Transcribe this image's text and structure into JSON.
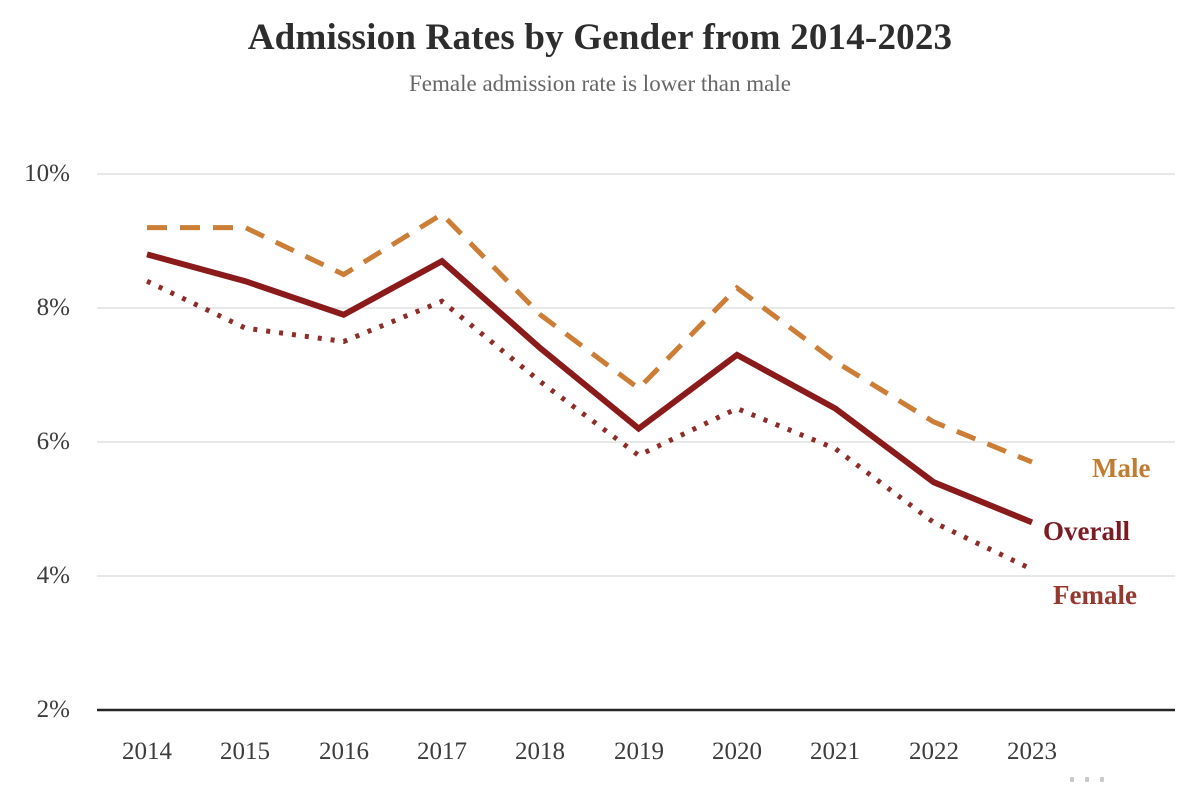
{
  "title": "Admission Rates by Gender from 2014-2023",
  "subtitle": "Female admission rate is lower than male",
  "chart_data": {
    "type": "line",
    "title": "Admission Rates by Gender from 2014-2023",
    "subtitle": "Female admission rate is lower than male",
    "categories": [
      "2014",
      "2015",
      "2016",
      "2017",
      "2018",
      "2019",
      "2020",
      "2021",
      "2022",
      "2023"
    ],
    "series": [
      {
        "name": "Male",
        "style": "dashed",
        "color": "#cc7d36",
        "label_color": "#c17c33",
        "values": [
          9.2,
          9.2,
          8.5,
          9.4,
          7.9,
          6.8,
          8.3,
          7.2,
          6.3,
          5.7
        ]
      },
      {
        "name": "Overall",
        "style": "solid",
        "color": "#8b1a1a",
        "label_color": "#7d1b24",
        "values": [
          8.8,
          8.4,
          7.9,
          8.7,
          7.4,
          6.2,
          7.3,
          6.5,
          5.4,
          4.8
        ]
      },
      {
        "name": "Female",
        "style": "dotted",
        "color": "#8e2d28",
        "label_color": "#95392e",
        "values": [
          8.4,
          7.7,
          7.5,
          8.1,
          6.9,
          5.8,
          6.5,
          5.9,
          4.8,
          4.1
        ]
      }
    ],
    "xlabel": "",
    "ylabel": "",
    "ylim": [
      2,
      10
    ],
    "yticks": [
      {
        "label": "10%",
        "value": 10
      },
      {
        "label": "8%",
        "value": 8
      },
      {
        "label": "6%",
        "value": 6
      },
      {
        "label": "4%",
        "value": 4
      },
      {
        "label": "2%",
        "value": 2
      }
    ],
    "grid": true,
    "legend_position": "right-inline",
    "axis_color": "#262626",
    "grid_color": "#dbdbdb"
  }
}
